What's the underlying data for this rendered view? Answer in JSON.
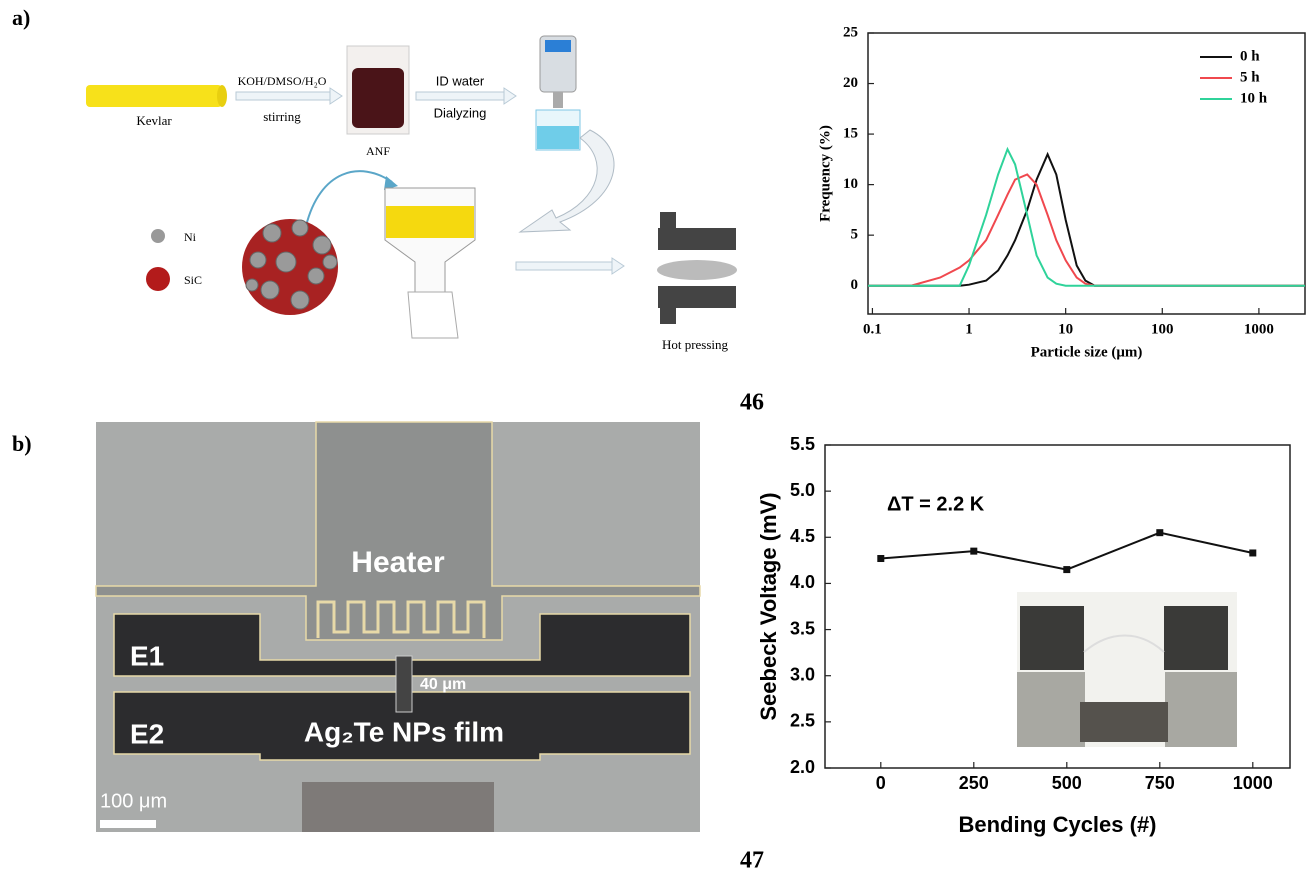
{
  "panel_labels": [
    "a)",
    "b)"
  ],
  "captions": [
    "46",
    "47"
  ],
  "diagram": {
    "kevlar": "Kevlar",
    "reagent": "KOH/DMSO/H₂O",
    "stirring": "stirring",
    "anf": "ANF",
    "water": "ID water",
    "dialyzing": "Dialyzing",
    "ni": "Ni",
    "sic": "SiC",
    "hot_pressing": "Hot pressing"
  },
  "micrograph": {
    "heater": "Heater",
    "e1": "E1",
    "e2": "E2",
    "film": "Ag₂Te NPs film",
    "gap": "40 μm",
    "scale": "100 μm"
  },
  "chart_data": [
    {
      "type": "line",
      "log_x": true,
      "xlabel": "Particle size (μm)",
      "ylabel": "Frequency (%)",
      "x": [
        0.09,
        0.25,
        0.5,
        0.8,
        1,
        1.5,
        2,
        2.5,
        3,
        4,
        5,
        6.5,
        8,
        10,
        13,
        16,
        20,
        3000
      ],
      "series": [
        {
          "name": "0 h",
          "color": "#111111",
          "values": [
            0,
            0,
            0,
            0,
            0.1,
            0.5,
            1.5,
            3,
            4.5,
            7.5,
            10.5,
            13,
            11,
            6.5,
            2,
            0.5,
            0,
            0
          ]
        },
        {
          "name": "5 h",
          "color": "#f0484e",
          "values": [
            0,
            0,
            0.8,
            1.8,
            2.5,
            4.5,
            7,
            9,
            10.5,
            11,
            10,
            7,
            4.5,
            2.5,
            0.8,
            0.2,
            0,
            0
          ]
        },
        {
          "name": "10 h",
          "color": "#2fd39a",
          "values": [
            0,
            0,
            0,
            0,
            2,
            7,
            11,
            13.5,
            12,
            7,
            3,
            0.8,
            0.2,
            0,
            0,
            0,
            0,
            0
          ]
        }
      ],
      "xlim": [
        0.09,
        3000
      ],
      "xticks": [
        0.1,
        1,
        10,
        100,
        1000
      ],
      "ylim": [
        -2.8,
        25
      ],
      "yticks": [
        0,
        5,
        10,
        15,
        20,
        25
      ],
      "legend": "upper right"
    },
    {
      "type": "line",
      "markers": true,
      "xlabel": "Bending Cycles (#)",
      "ylabel": "Seebeck Voltage (mV)",
      "annotation": "ΔT = 2.2 K",
      "x": [
        0,
        250,
        500,
        750,
        1000
      ],
      "series": [
        {
          "color": "#111111",
          "values": [
            4.27,
            4.35,
            4.15,
            4.55,
            4.33
          ]
        }
      ],
      "xlim": [
        -150,
        1100
      ],
      "xticks": [
        0,
        250,
        500,
        750,
        1000
      ],
      "ylim": [
        2,
        5.5
      ],
      "yticks": [
        {
          "value": 2,
          "label": "2.0"
        },
        2.5,
        {
          "value": 3,
          "label": "3.0"
        },
        3.5,
        {
          "value": 4,
          "label": "4.0"
        },
        4.5,
        {
          "value": 5,
          "label": "5.0"
        },
        5.5
      ]
    }
  ]
}
